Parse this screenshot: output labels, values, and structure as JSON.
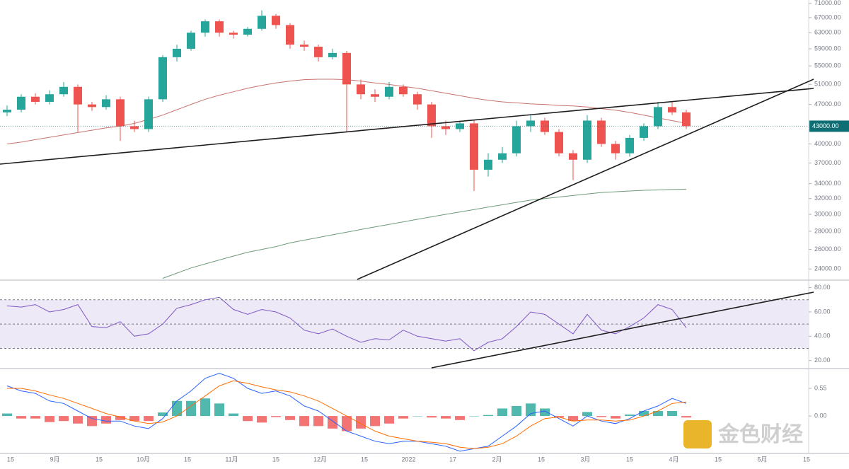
{
  "chart_data": {
    "type": "candlestick",
    "categories": [
      "15",
      "9月",
      "15",
      "10月",
      "15",
      "11月",
      "15",
      "12月",
      "15",
      "2022",
      "17",
      "2月",
      "15",
      "3月",
      "15",
      "4月",
      "15",
      "5月",
      "15"
    ],
    "open": [
      45500,
      46000,
      48500,
      47500,
      49000,
      50500,
      47000,
      46500,
      48000,
      43000,
      42500,
      48000,
      57000,
      59000,
      63000,
      66000,
      63000,
      62500,
      64000,
      67500,
      65000,
      60000,
      59500,
      57000,
      58000,
      51000,
      49000,
      48500,
      50500,
      49000,
      47000,
      43000,
      42500,
      43500,
      36000,
      37500,
      38500,
      43000,
      44000,
      42000,
      38500,
      37500,
      44000,
      40000,
      38500,
      41000,
      43000,
      46500,
      45500
    ],
    "high": [
      46800,
      49000,
      49200,
      49800,
      51500,
      51000,
      47500,
      48800,
      48500,
      44000,
      48500,
      57500,
      60000,
      63500,
      66500,
      66500,
      63500,
      64500,
      69000,
      68000,
      65500,
      61000,
      60000,
      59000,
      58500,
      52000,
      50000,
      51500,
      51000,
      49500,
      47500,
      44000,
      44000,
      44000,
      38500,
      39500,
      44000,
      45000,
      44500,
      42500,
      39000,
      45000,
      44500,
      40500,
      41500,
      43500,
      47500,
      47500,
      46000
    ],
    "low": [
      44800,
      45500,
      47000,
      47000,
      48500,
      42000,
      45800,
      46000,
      40500,
      42000,
      42000,
      47500,
      56000,
      58500,
      62000,
      62000,
      61500,
      62000,
      63500,
      64000,
      59000,
      58500,
      56000,
      56500,
      42000,
      48000,
      47500,
      48000,
      48500,
      46000,
      41000,
      41500,
      42000,
      33000,
      35000,
      37000,
      38000,
      42000,
      41500,
      38000,
      34500,
      37000,
      39500,
      37500,
      38000,
      40500,
      42500,
      45000,
      42500
    ],
    "close": [
      46000,
      48500,
      47500,
      49000,
      50500,
      47000,
      46500,
      48000,
      43000,
      42500,
      48000,
      57000,
      59000,
      63000,
      66000,
      63000,
      62500,
      64000,
      67500,
      65000,
      60000,
      59500,
      57000,
      58000,
      51000,
      49000,
      48500,
      50500,
      49000,
      47000,
      43000,
      42500,
      43500,
      36000,
      37500,
      38500,
      43000,
      44000,
      42000,
      38500,
      37500,
      44000,
      40000,
      38500,
      41000,
      43000,
      46500,
      45500,
      43000
    ],
    "up_color": "#26a69a",
    "down_color": "#ef5350",
    "moving_averages": [
      {
        "color": "#c9736e",
        "values": [
          40000,
          40300,
          40700,
          41100,
          41500,
          41900,
          42300,
          42700,
          43000,
          43500,
          44200,
          45000,
          46000,
          47000,
          48000,
          48800,
          49500,
          50200,
          50800,
          51300,
          51700,
          52000,
          52100,
          52100,
          52000,
          51700,
          51300,
          51000,
          50600,
          50200,
          49700,
          49200,
          48700,
          48200,
          47800,
          47500,
          47300,
          47100,
          47000,
          46800,
          46700,
          46500,
          46200,
          45900,
          45500,
          45000,
          44500,
          44000,
          43500
        ]
      },
      {
        "color": "#6e9c7a",
        "values": [
          null,
          null,
          null,
          null,
          null,
          null,
          null,
          null,
          null,
          null,
          null,
          23100,
          23600,
          24100,
          24500,
          24900,
          25300,
          25700,
          26000,
          26300,
          26700,
          27000,
          27300,
          27600,
          27900,
          28200,
          28500,
          28800,
          29100,
          29400,
          29700,
          30000,
          30300,
          30600,
          30900,
          31200,
          31500,
          31800,
          32000,
          32200,
          32400,
          32600,
          32800,
          32900,
          33000,
          33100,
          33150,
          33200,
          33250
        ]
      }
    ],
    "log_scale": true,
    "ylim": [
      23000,
      72000
    ],
    "yticks": [
      {
        "value": 24000,
        "label": "24000.00"
      },
      {
        "value": 26000,
        "label": "26000.00"
      },
      {
        "value": 28000,
        "label": "28000.00"
      },
      {
        "value": 30000,
        "label": "30000.00"
      },
      {
        "value": 32000,
        "label": "32000.00"
      },
      {
        "value": 34000,
        "label": "34000.00"
      },
      {
        "value": 37000,
        "label": "37000.00"
      },
      {
        "value": 40000,
        "label": "40000.00"
      },
      {
        "value": 47000,
        "label": "47000.00"
      },
      {
        "value": 51000,
        "label": "51000.00"
      },
      {
        "value": 55000,
        "label": "55000.00"
      },
      {
        "value": 59000,
        "label": "59000.00"
      },
      {
        "value": 63000,
        "label": "63000.00"
      },
      {
        "value": 67000,
        "label": "67000.00"
      },
      {
        "value": 71000,
        "label": "71000.00"
      }
    ],
    "last_price": {
      "value": 43000,
      "label": "43000.00"
    },
    "last_price_color": "#0e6e74",
    "rsi": {
      "type": "line",
      "values": [
        65,
        64,
        66,
        60,
        62,
        66,
        48,
        47,
        52,
        40,
        42,
        50,
        63,
        66,
        70,
        72,
        62,
        58,
        62,
        60,
        55,
        45,
        42,
        46,
        40,
        35,
        38,
        37,
        45,
        40,
        38,
        36,
        38,
        28,
        35,
        38,
        48,
        60,
        58,
        50,
        42,
        58,
        45,
        42,
        48,
        55,
        66,
        62,
        47
      ],
      "color": "#7e57c2",
      "ylim": [
        14,
        85
      ],
      "yticks": [
        {
          "value": 20,
          "label": "20.00"
        },
        {
          "value": 40,
          "label": "40.00"
        },
        {
          "value": 60,
          "label": "60.00"
        },
        {
          "value": 80,
          "label": "80.00"
        }
      ],
      "levels": [
        70,
        50,
        30
      ],
      "band_color": "#ede9f7"
    },
    "macd": {
      "type": "macd",
      "macd": {
        "color": "#2962ff",
        "values": [
          0.6,
          0.5,
          0.45,
          0.3,
          0.25,
          0.1,
          -0.05,
          -0.1,
          -0.1,
          -0.2,
          -0.25,
          -0.05,
          0.3,
          0.5,
          0.75,
          0.85,
          0.75,
          0.55,
          0.45,
          0.5,
          0.4,
          0.2,
          0.1,
          -0.1,
          -0.3,
          -0.4,
          -0.5,
          -0.55,
          -0.5,
          -0.5,
          -0.55,
          -0.6,
          -0.7,
          -0.65,
          -0.6,
          -0.4,
          -0.2,
          0.05,
          0.1,
          -0.05,
          -0.2,
          0.0,
          -0.1,
          -0.15,
          -0.05,
          0.1,
          0.2,
          0.35,
          0.25
        ]
      },
      "signal": {
        "color": "#ff6d00",
        "values": [
          0.55,
          0.55,
          0.5,
          0.42,
          0.35,
          0.25,
          0.15,
          0.05,
          -0.02,
          -0.1,
          -0.15,
          -0.12,
          0.0,
          0.2,
          0.4,
          0.6,
          0.7,
          0.65,
          0.58,
          0.52,
          0.48,
          0.4,
          0.3,
          0.15,
          0.0,
          -0.15,
          -0.3,
          -0.4,
          -0.45,
          -0.5,
          -0.52,
          -0.55,
          -0.62,
          -0.65,
          -0.62,
          -0.55,
          -0.4,
          -0.2,
          -0.05,
          -0.02,
          -0.1,
          -0.08,
          -0.08,
          -0.1,
          -0.08,
          0.0,
          0.1,
          0.25,
          0.28
        ]
      },
      "histogram": {
        "up_color": "#26a69a",
        "down_color": "#ef5350",
        "values": [
          0.05,
          -0.05,
          -0.05,
          -0.12,
          -0.1,
          -0.15,
          -0.2,
          -0.15,
          -0.08,
          -0.1,
          -0.1,
          0.07,
          0.3,
          0.3,
          0.35,
          0.25,
          0.05,
          -0.1,
          -0.13,
          -0.02,
          -0.08,
          -0.2,
          -0.2,
          -0.25,
          -0.3,
          -0.25,
          -0.2,
          -0.15,
          -0.05,
          0,
          -0.03,
          -0.05,
          -0.08,
          0,
          0.02,
          0.15,
          0.2,
          0.25,
          0.15,
          -0.03,
          -0.1,
          0.08,
          -0.02,
          -0.05,
          0.03,
          0.1,
          0.1,
          0.1,
          -0.03
        ]
      },
      "ylim": [
        -0.73,
        0.93
      ],
      "yticks": [
        {
          "value": 0,
          "label": "0.00"
        },
        {
          "value": 0.55,
          "label": "0.55"
        }
      ]
    }
  },
  "watermark": "金色财经"
}
